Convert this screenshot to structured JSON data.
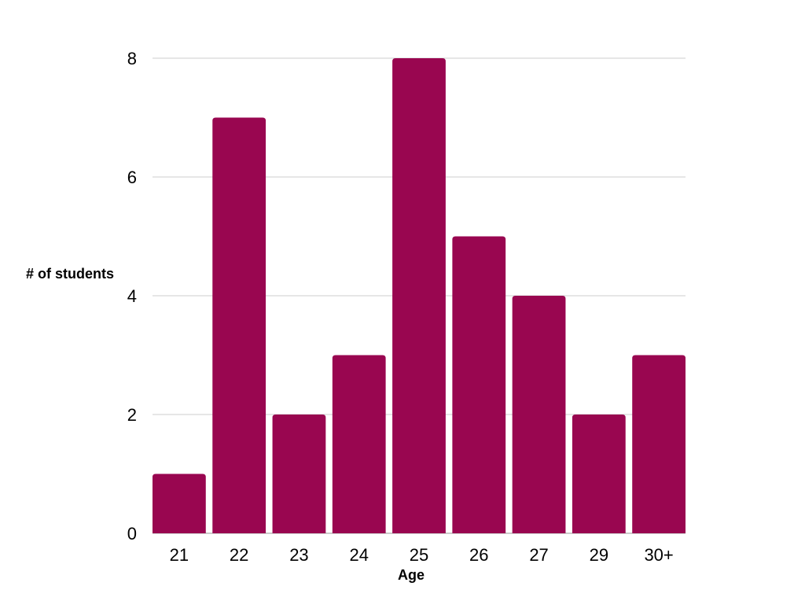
{
  "chart_data": {
    "type": "bar",
    "title": "",
    "xlabel": "Age",
    "ylabel": "# of students",
    "categories": [
      "21",
      "22",
      "23",
      "24",
      "25",
      "26",
      "27",
      "29",
      "30+"
    ],
    "values": [
      1,
      7,
      2,
      3,
      8,
      5,
      4,
      2,
      3
    ],
    "ylim": [
      0,
      8
    ],
    "yticks": [
      0,
      2,
      4,
      6,
      8
    ],
    "grid": true,
    "legend": "none",
    "bar_color": "#990650",
    "grid_color": "#cccccc"
  }
}
